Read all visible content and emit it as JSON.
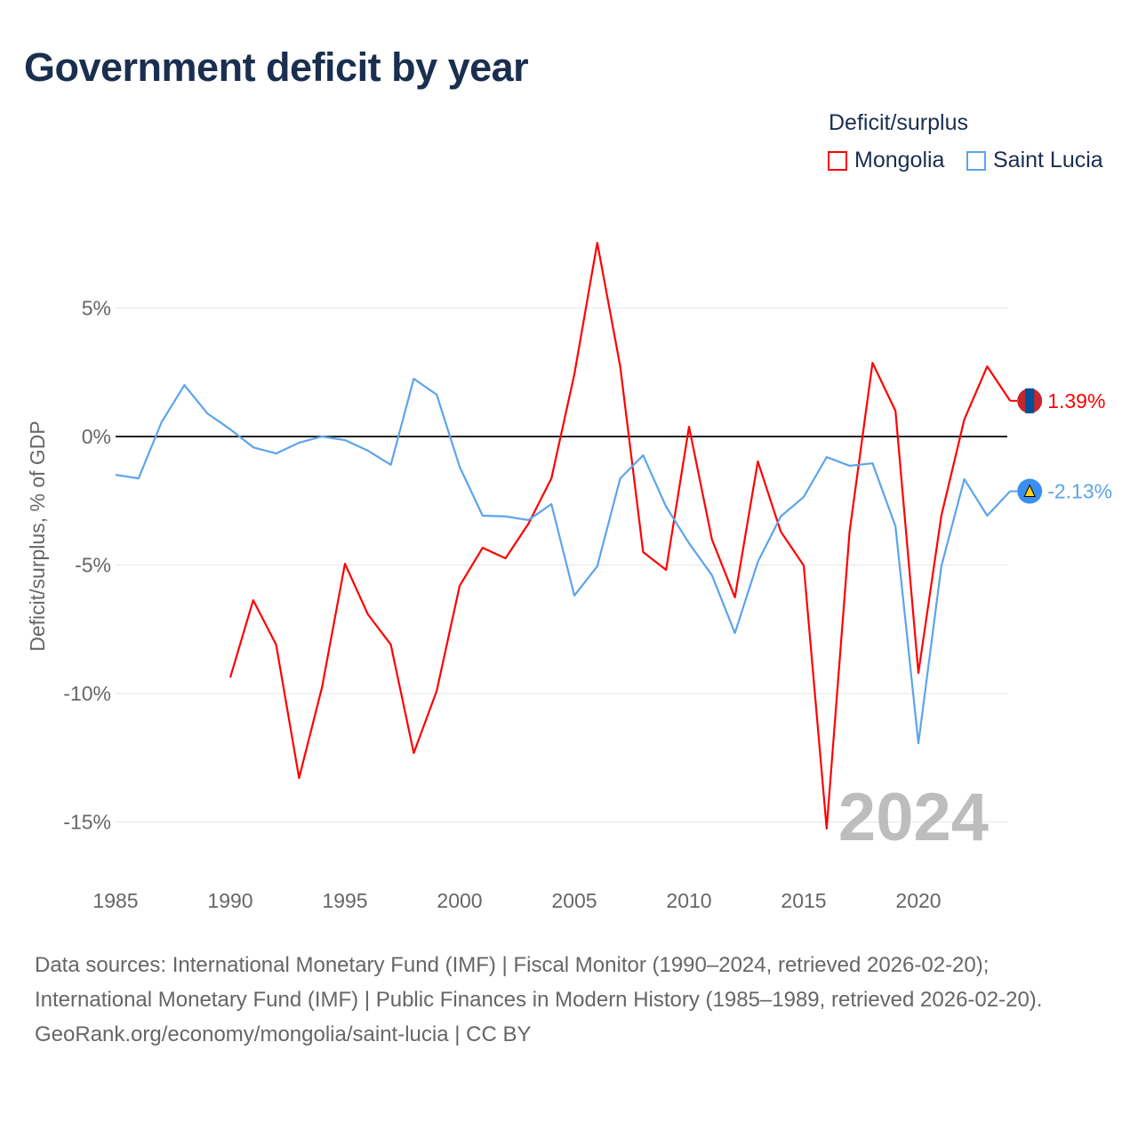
{
  "title": "Government deficit by year",
  "legend": {
    "title": "Deficit/surplus",
    "items": [
      "Mongolia",
      "Saint Lucia"
    ]
  },
  "footer": {
    "sources": "Data sources: International Monetary Fund (IMF) | Fiscal Monitor (1990–2024, retrieved 2026-02-20); International Monetary Fund (IMF) | Public Finances in Modern History (1985–1989, retrieved 2026-02-20).",
    "credit": "GeoRank.org/economy/mongolia/saint-lucia | CC BY"
  },
  "chart_data": {
    "type": "line",
    "title": "Government deficit by year",
    "ylabel": "Deficit/surplus, % of GDP",
    "xlabel": "",
    "ylim": [
      -17,
      10
    ],
    "xlim": [
      1985,
      2024
    ],
    "yticks": [
      5,
      0,
      -5,
      -10,
      -15
    ],
    "ytick_labels": [
      "5%",
      "0%",
      "-5%",
      "-10%",
      "-15%"
    ],
    "xticks": [
      1985,
      1990,
      1995,
      2000,
      2005,
      2010,
      2015,
      2020
    ],
    "xtick_labels": [
      "1985",
      "1990",
      "1995",
      "2000",
      "2005",
      "2010",
      "2015",
      "2020"
    ],
    "year_watermark": "2024",
    "series": [
      {
        "name": "Mongolia",
        "color": "#ff0000",
        "end_label": "1.39%",
        "x": [
          1990,
          1991,
          1992,
          1993,
          1994,
          1995,
          1996,
          1997,
          1998,
          1999,
          2000,
          2001,
          2002,
          2003,
          2004,
          2005,
          2006,
          2007,
          2008,
          2009,
          2010,
          2011,
          2012,
          2013,
          2014,
          2015,
          2016,
          2017,
          2018,
          2019,
          2020,
          2021,
          2022,
          2023,
          2024
        ],
        "values": [
          -9.38,
          -6.37,
          -8.1,
          -13.29,
          -9.76,
          -4.95,
          -6.92,
          -8.1,
          -12.32,
          -9.9,
          -5.81,
          -4.33,
          -4.74,
          -3.39,
          -1.63,
          2.42,
          7.54,
          2.73,
          -4.5,
          -5.19,
          0.38,
          -4.01,
          -6.26,
          -0.97,
          -3.7,
          -5.02,
          -15.26,
          -3.7,
          2.87,
          1.0,
          -9.2,
          -3.08,
          0.66,
          2.73,
          1.39
        ]
      },
      {
        "name": "Saint Lucia",
        "color": "#5ba4ec",
        "end_label": "-2.13%",
        "x": [
          1985,
          1986,
          1987,
          1988,
          1989,
          1990,
          1991,
          1992,
          1993,
          1994,
          1995,
          1996,
          1997,
          1998,
          1999,
          2000,
          2001,
          2002,
          2003,
          2004,
          2005,
          2006,
          2007,
          2008,
          2009,
          2010,
          2011,
          2012,
          2013,
          2014,
          2015,
          2016,
          2017,
          2018,
          2019,
          2020,
          2021,
          2022,
          2023,
          2024
        ],
        "values": [
          -1.49,
          -1.63,
          0.55,
          2.0,
          0.9,
          0.28,
          -0.42,
          -0.66,
          -0.24,
          0.0,
          -0.14,
          -0.55,
          -1.1,
          2.25,
          1.63,
          -1.18,
          -3.08,
          -3.11,
          -3.25,
          -2.63,
          -6.19,
          -5.05,
          -1.63,
          -0.73,
          -2.73,
          -4.15,
          -5.4,
          -7.65,
          -4.88,
          -3.11,
          -2.35,
          -0.8,
          -1.14,
          -1.04,
          -3.49,
          -11.94,
          -5.05,
          -1.66,
          -3.08,
          -2.13
        ]
      }
    ]
  }
}
